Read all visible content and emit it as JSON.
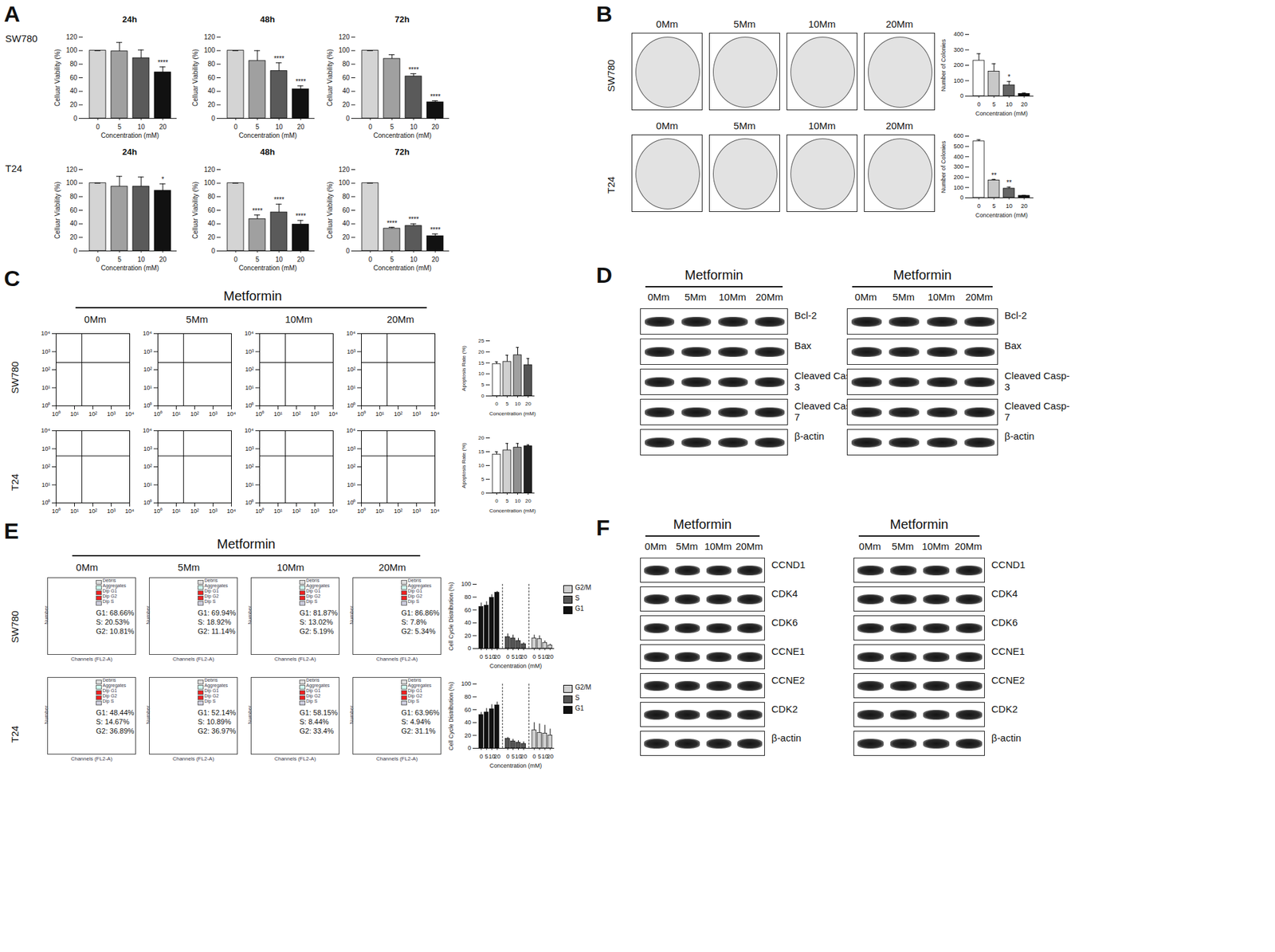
{
  "figure": {
    "panel_letters": [
      "A",
      "B",
      "C",
      "D",
      "E",
      "F"
    ],
    "cell_lines": [
      "SW780",
      "T24"
    ],
    "treatment": "Metformin",
    "doses": [
      "0Mm",
      "5Mm",
      "10Mm",
      "20Mm"
    ]
  },
  "chart_data": [
    {
      "panel": "A",
      "row": "SW780",
      "type": "bar",
      "title": "24h",
      "categories": [
        "0",
        "5",
        "10",
        "20"
      ],
      "values": [
        100,
        99,
        89,
        68
      ],
      "errors": [
        0,
        13,
        12,
        8
      ],
      "significance": [
        null,
        null,
        null,
        "****"
      ],
      "colors": [
        "#d4d4d4",
        "#a0a0a0",
        "#5a5a5a",
        "#111111"
      ],
      "x_label": "Concentration (mM)",
      "y_label": "Celluar Viability (%)",
      "ylim": [
        0,
        120
      ],
      "yticks": [
        0,
        20,
        40,
        60,
        80,
        100,
        120
      ]
    },
    {
      "panel": "A",
      "row": "SW780",
      "type": "bar",
      "title": "48h",
      "categories": [
        "0",
        "5",
        "10",
        "20"
      ],
      "values": [
        100,
        85,
        70,
        43
      ],
      "errors": [
        0,
        15,
        12,
        5
      ],
      "significance": [
        null,
        null,
        "****",
        "****"
      ],
      "colors": [
        "#d4d4d4",
        "#a0a0a0",
        "#5a5a5a",
        "#111111"
      ],
      "x_label": "Concentration (mM)",
      "y_label": "Celluar Viability (%)",
      "ylim": [
        0,
        120
      ],
      "yticks": [
        0,
        20,
        40,
        60,
        80,
        100,
        120
      ]
    },
    {
      "panel": "A",
      "row": "SW780",
      "type": "bar",
      "title": "72h",
      "categories": [
        "0",
        "5",
        "10",
        "20"
      ],
      "values": [
        100,
        88,
        62,
        24
      ],
      "errors": [
        0,
        6,
        4,
        2
      ],
      "significance": [
        null,
        null,
        "****",
        "****"
      ],
      "colors": [
        "#d4d4d4",
        "#a0a0a0",
        "#5a5a5a",
        "#111111"
      ],
      "x_label": "Concentration (mM)",
      "y_label": "Celluar Viability (%)",
      "ylim": [
        0,
        120
      ],
      "yticks": [
        0,
        20,
        40,
        60,
        80,
        100,
        120
      ]
    },
    {
      "panel": "A",
      "row": "T24",
      "type": "bar",
      "title": "24h",
      "categories": [
        "0",
        "5",
        "10",
        "20"
      ],
      "values": [
        100,
        95,
        95,
        89
      ],
      "errors": [
        0,
        15,
        14,
        10
      ],
      "significance": [
        null,
        null,
        null,
        "*"
      ],
      "colors": [
        "#d4d4d4",
        "#a0a0a0",
        "#5a5a5a",
        "#111111"
      ],
      "x_label": "Concentration (mM)",
      "y_label": "Celluar Viability (%)",
      "ylim": [
        0,
        120
      ],
      "yticks": [
        0,
        20,
        40,
        60,
        80,
        100,
        120
      ]
    },
    {
      "panel": "A",
      "row": "T24",
      "type": "bar",
      "title": "48h",
      "categories": [
        "0",
        "5",
        "10",
        "20"
      ],
      "values": [
        100,
        47,
        57,
        39
      ],
      "errors": [
        0,
        6,
        12,
        6
      ],
      "significance": [
        null,
        "****",
        "****",
        "****"
      ],
      "colors": [
        "#d4d4d4",
        "#a0a0a0",
        "#5a5a5a",
        "#111111"
      ],
      "x_label": "Concentration (mM)",
      "y_label": "Celluar Viability (%)",
      "ylim": [
        0,
        120
      ],
      "yticks": [
        0,
        20,
        40,
        60,
        80,
        100,
        120
      ]
    },
    {
      "panel": "A",
      "row": "T24",
      "type": "bar",
      "title": "72h",
      "categories": [
        "0",
        "5",
        "10",
        "20"
      ],
      "values": [
        100,
        33,
        37,
        22
      ],
      "errors": [
        0,
        2,
        3,
        3
      ],
      "significance": [
        null,
        "****",
        "****",
        "****"
      ],
      "colors": [
        "#d4d4d4",
        "#a0a0a0",
        "#5a5a5a",
        "#111111"
      ],
      "x_label": "Concentration (mM)",
      "y_label": "Celluar Viability (%)",
      "ylim": [
        0,
        120
      ],
      "yticks": [
        0,
        20,
        40,
        60,
        80,
        100,
        120
      ]
    },
    {
      "panel": "B",
      "row": "SW780",
      "type": "bar",
      "categories": [
        "0",
        "5",
        "10",
        "20"
      ],
      "values": [
        230,
        160,
        70,
        15
      ],
      "errors": [
        45,
        50,
        25,
        5
      ],
      "significance": [
        null,
        null,
        "*",
        null
      ],
      "colors": [
        "#ffffff",
        "#c8c8c8",
        "#666666",
        "#111111"
      ],
      "x_label": "Concentration (mM)",
      "y_label": "Number of Colonies",
      "ylim": [
        0,
        400
      ],
      "yticks": [
        0,
        100,
        200,
        300,
        400
      ]
    },
    {
      "panel": "B",
      "row": "T24",
      "type": "bar",
      "categories": [
        "0",
        "5",
        "10",
        "20"
      ],
      "values": [
        550,
        170,
        90,
        20
      ],
      "errors": [
        15,
        10,
        15,
        5
      ],
      "significance": [
        null,
        "**",
        "**",
        null
      ],
      "colors": [
        "#ffffff",
        "#c8c8c8",
        "#666666",
        "#111111"
      ],
      "x_label": "Concentration (mM)",
      "y_label": "Number of Colonies",
      "ylim": [
        0,
        600
      ],
      "yticks": [
        0,
        100,
        200,
        300,
        400,
        500,
        600
      ]
    },
    {
      "panel": "C",
      "row": "SW780",
      "type": "bar",
      "categories": [
        "0",
        "5",
        "10",
        "20"
      ],
      "values": [
        14.5,
        15.5,
        18.5,
        14
      ],
      "errors": [
        1,
        3,
        3.5,
        3
      ],
      "colors": [
        "#ffffff",
        "#d0d0d0",
        "#a0a0a0",
        "#555555"
      ],
      "x_label": "Concentration (mM)",
      "y_label": "Apoptosis Rate (%)",
      "ylim": [
        0,
        25
      ],
      "yticks": [
        0,
        5,
        10,
        15,
        20,
        25
      ]
    },
    {
      "panel": "C",
      "row": "T24",
      "type": "bar",
      "categories": [
        "0",
        "5",
        "10",
        "20"
      ],
      "values": [
        14,
        15.5,
        16.5,
        17
      ],
      "errors": [
        1,
        2.5,
        1.5,
        0.5
      ],
      "colors": [
        "#ffffff",
        "#d0d0d0",
        "#909090",
        "#222222"
      ],
      "x_label": "Concentration (mM)",
      "y_label": "Apoptosis Rate (%)",
      "ylim": [
        0,
        20
      ],
      "yticks": [
        0,
        5,
        10,
        15,
        20
      ]
    },
    {
      "panel": "E",
      "row": "SW780",
      "type": "grouped_bar",
      "categories": [
        "0",
        "5",
        "10",
        "20"
      ],
      "series": [
        {
          "name": "G1",
          "color": "#111111",
          "values": [
            65,
            67,
            79,
            87
          ],
          "errors": [
            6,
            6,
            5,
            2
          ]
        },
        {
          "name": "S",
          "color": "#555555",
          "values": [
            18,
            16,
            12,
            7
          ],
          "errors": [
            5,
            5,
            4,
            2
          ]
        },
        {
          "name": "G2/M",
          "color": "#d0d0d0",
          "values": [
            16,
            15,
            9,
            5
          ],
          "errors": [
            5,
            5,
            3,
            2
          ]
        }
      ],
      "legend": "right",
      "x_label": "Concentration (mM)",
      "y_label": "Cell Cycle Distribution (%)",
      "ylim": [
        0,
        100
      ],
      "yticks": [
        0,
        20,
        40,
        60,
        80,
        100
      ]
    },
    {
      "panel": "E",
      "row": "T24",
      "type": "grouped_bar",
      "categories": [
        "0",
        "5",
        "10",
        "20"
      ],
      "series": [
        {
          "name": "G1",
          "color": "#111111",
          "values": [
            52,
            56,
            61,
            67
          ],
          "errors": [
            4,
            6,
            7,
            5
          ]
        },
        {
          "name": "S",
          "color": "#555555",
          "values": [
            15,
            11,
            9,
            7
          ],
          "errors": [
            2,
            3,
            3,
            3
          ]
        },
        {
          "name": "G2/M",
          "color": "#d0d0d0",
          "values": [
            28,
            24,
            23,
            20
          ],
          "errors": [
            12,
            14,
            13,
            10
          ]
        }
      ],
      "legend": "right",
      "x_label": "Concentration (mM)",
      "y_label": "Cell Cycle Distribution (%)",
      "ylim": [
        0,
        100
      ],
      "yticks": [
        0,
        20,
        40,
        60,
        80,
        100
      ]
    }
  ],
  "flow_apoptosis": {
    "panel": "C",
    "log": true,
    "xlim": [
      1,
      10000
    ],
    "ylim": [
      1,
      10000
    ],
    "xticks": [
      {
        "value": 1,
        "label": "10⁰"
      },
      {
        "value": 10,
        "label": "10¹"
      },
      {
        "value": 100,
        "label": "10²"
      },
      {
        "value": 1000,
        "label": "10³"
      },
      {
        "value": 10000,
        "label": "10⁴"
      }
    ],
    "yticks": [
      {
        "value": 1,
        "label": "10⁰"
      },
      {
        "value": 10,
        "label": "10¹"
      },
      {
        "value": 100,
        "label": "10²"
      },
      {
        "value": 1000,
        "label": "10³"
      },
      {
        "value": 10000,
        "label": "10⁴"
      }
    ],
    "gates": {
      "SW780": {
        "x": 25,
        "y": 250
      },
      "T24": {
        "x": 25,
        "y": 400
      }
    }
  },
  "cell_cycle_histograms": {
    "panel": "E",
    "x_label": "Channels (FL2-A)",
    "y_label": "Number",
    "legend_items": [
      "Debris",
      "Aggregates",
      "Dip G1",
      "Dip G2",
      "Dip S"
    ],
    "annotations": {
      "SW780": [
        [
          "G1: 68.66%",
          "S: 20.53%",
          "G2: 10.81%"
        ],
        [
          "G1: 69.94%",
          "S: 18.92%",
          "G2: 11.14%"
        ],
        [
          "G1: 81.87%",
          "S: 13.02%",
          "G2: 5.19%"
        ],
        [
          "G1: 86.86%",
          "S: 7.8%",
          "G2: 5.34%"
        ]
      ],
      "T24": [
        [
          "G1: 48.44%",
          "S: 14.67%",
          "G2: 36.89%"
        ],
        [
          "G1: 52.14%",
          "S: 10.89%",
          "G2: 36.97%"
        ],
        [
          "G1: 58.15%",
          "S: 8.44%",
          "G2: 33.4%"
        ],
        [
          "G1: 63.96%",
          "S: 4.94%",
          "G2: 31.1%"
        ]
      ]
    }
  },
  "blots": {
    "D": {
      "proteins": [
        "Bcl-2",
        "Bax",
        "Cleaved Casp-3",
        "Cleaved Casp-7",
        "β-actin"
      ]
    },
    "F": {
      "proteins": [
        "CCND1",
        "CDK4",
        "CDK6",
        "CCNE1",
        "CCNE2",
        "CDK2",
        "β-actin"
      ]
    }
  }
}
